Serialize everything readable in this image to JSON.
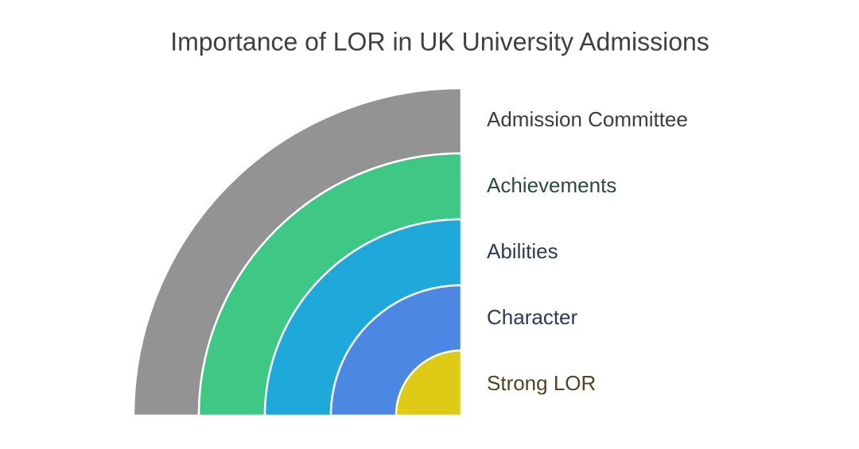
{
  "title": "Importance of LOR in UK University Admissions",
  "layers": [
    {
      "label": "Admission Committee"
    },
    {
      "label": "Achievements"
    },
    {
      "label": "Abilities"
    },
    {
      "label": "Character"
    },
    {
      "label": "Strong LOR"
    }
  ]
}
